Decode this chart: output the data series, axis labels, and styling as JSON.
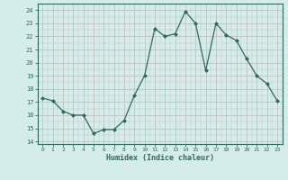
{
  "x": [
    0,
    1,
    2,
    3,
    4,
    5,
    6,
    7,
    8,
    9,
    10,
    11,
    12,
    13,
    14,
    15,
    16,
    17,
    18,
    19,
    20,
    21,
    22,
    23
  ],
  "y": [
    17.3,
    17.1,
    16.3,
    16.0,
    16.0,
    14.6,
    14.9,
    14.9,
    15.6,
    17.5,
    19.0,
    22.6,
    22.0,
    22.2,
    23.9,
    23.0,
    19.4,
    23.0,
    22.1,
    21.7,
    20.3,
    19.0,
    18.4,
    17.1
  ],
  "line_color": "#2e6b5e",
  "marker": "D",
  "marker_size": 2.0,
  "bg_color": "#d4ecea",
  "xlabel": "Humidex (Indice chaleur)",
  "xlim": [
    -0.5,
    23.5
  ],
  "ylim": [
    13.8,
    24.5
  ],
  "yticks": [
    14,
    15,
    16,
    17,
    18,
    19,
    20,
    21,
    22,
    23,
    24
  ],
  "xticks": [
    0,
    1,
    2,
    3,
    4,
    5,
    6,
    7,
    8,
    9,
    10,
    11,
    12,
    13,
    14,
    15,
    16,
    17,
    18,
    19,
    20,
    21,
    22,
    23
  ],
  "xtick_labels": [
    "0",
    "1",
    "2",
    "3",
    "4",
    "5",
    "6",
    "7",
    "8",
    "9",
    "10",
    "11",
    "12",
    "13",
    "14",
    "15",
    "16",
    "17",
    "18",
    "19",
    "20",
    "21",
    "22",
    "23"
  ],
  "tick_color": "#2e6b5e",
  "axis_color": "#2e6b5e",
  "font_color": "#2e6b5e",
  "grid_major_color": "#c0b8b8",
  "grid_minor_color": "#ccc4c4"
}
